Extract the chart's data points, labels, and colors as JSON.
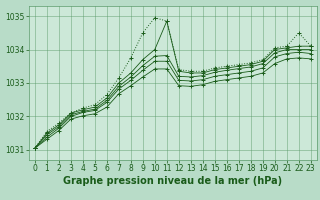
{
  "background_color": "#b8dcc8",
  "plot_bg_color": "#cce8d8",
  "grid_color": "#5a9a6a",
  "line_color": "#1a5c1a",
  "title": "Graphe pression niveau de la mer (hPa)",
  "xlim": [
    -0.5,
    23.5
  ],
  "ylim": [
    1030.7,
    1035.3
  ],
  "yticks": [
    1031,
    1032,
    1033,
    1034,
    1035
  ],
  "xticks": [
    0,
    1,
    2,
    3,
    4,
    5,
    6,
    7,
    8,
    9,
    10,
    11,
    12,
    13,
    14,
    15,
    16,
    17,
    18,
    19,
    20,
    21,
    22,
    23
  ],
  "series": [
    {
      "x": [
        0,
        1,
        2,
        3,
        4,
        5,
        6,
        7,
        8,
        9,
        10,
        11,
        12,
        13,
        14,
        15,
        16,
        17,
        18,
        19,
        20,
        21,
        22,
        23
      ],
      "y": [
        1031.05,
        1031.55,
        1031.8,
        1032.1,
        1032.25,
        1032.35,
        1032.65,
        1033.15,
        1033.75,
        1034.5,
        1034.95,
        1034.85,
        1033.4,
        1033.35,
        1033.35,
        1033.45,
        1033.5,
        1033.55,
        1033.6,
        1033.7,
        1034.05,
        1034.1,
        1034.5,
        1034.1
      ],
      "style": "dotted"
    },
    {
      "x": [
        0,
        1,
        2,
        3,
        4,
        5,
        6,
        7,
        8,
        9,
        10,
        11,
        12,
        13,
        14,
        15,
        16,
        17,
        18,
        19,
        20,
        21,
        22,
        23
      ],
      "y": [
        1031.05,
        1031.5,
        1031.75,
        1032.1,
        1032.2,
        1032.28,
        1032.55,
        1033.0,
        1033.3,
        1033.7,
        1034.0,
        1034.85,
        1033.35,
        1033.3,
        1033.3,
        1033.4,
        1033.45,
        1033.5,
        1033.55,
        1033.65,
        1034.0,
        1034.05,
        1034.1,
        1034.1
      ],
      "style": "solid"
    },
    {
      "x": [
        0,
        1,
        2,
        3,
        4,
        5,
        6,
        7,
        8,
        9,
        10,
        11,
        12,
        13,
        14,
        15,
        16,
        17,
        18,
        19,
        20,
        21,
        22,
        23
      ],
      "y": [
        1031.05,
        1031.45,
        1031.7,
        1032.05,
        1032.15,
        1032.22,
        1032.48,
        1032.9,
        1033.18,
        1033.52,
        1033.8,
        1033.82,
        1033.2,
        1033.18,
        1033.22,
        1033.32,
        1033.38,
        1033.43,
        1033.48,
        1033.58,
        1033.9,
        1034.0,
        1034.0,
        1034.0
      ],
      "style": "solid"
    },
    {
      "x": [
        0,
        1,
        2,
        3,
        4,
        5,
        6,
        7,
        8,
        9,
        10,
        11,
        12,
        13,
        14,
        15,
        16,
        17,
        18,
        19,
        20,
        21,
        22,
        23
      ],
      "y": [
        1031.05,
        1031.38,
        1031.65,
        1032.0,
        1032.12,
        1032.18,
        1032.42,
        1032.82,
        1033.08,
        1033.38,
        1033.65,
        1033.65,
        1033.08,
        1033.06,
        1033.1,
        1033.2,
        1033.25,
        1033.3,
        1033.35,
        1033.45,
        1033.78,
        1033.88,
        1033.92,
        1033.88
      ],
      "style": "solid"
    },
    {
      "x": [
        0,
        1,
        2,
        3,
        4,
        5,
        6,
        7,
        8,
        9,
        10,
        11,
        12,
        13,
        14,
        15,
        16,
        17,
        18,
        19,
        20,
        21,
        22,
        23
      ],
      "y": [
        1031.05,
        1031.32,
        1031.58,
        1031.92,
        1032.02,
        1032.08,
        1032.28,
        1032.68,
        1032.92,
        1033.18,
        1033.42,
        1033.42,
        1032.92,
        1032.9,
        1032.95,
        1033.05,
        1033.1,
        1033.15,
        1033.2,
        1033.3,
        1033.58,
        1033.72,
        1033.75,
        1033.72
      ],
      "style": "solid"
    }
  ],
  "title_fontsize": 7,
  "tick_fontsize": 5.5
}
